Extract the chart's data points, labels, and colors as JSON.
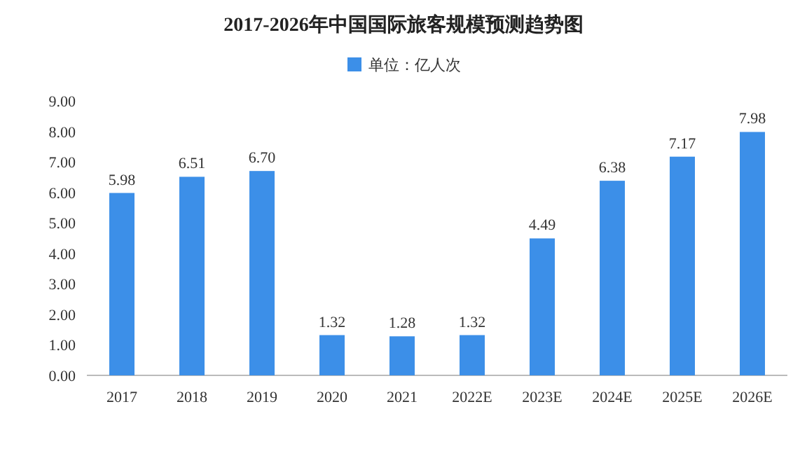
{
  "chart_data": {
    "type": "bar",
    "title": "2017-2026年中国国际旅客规模预测趋势图",
    "categories": [
      "2017",
      "2018",
      "2019",
      "2020",
      "2021",
      "2022E",
      "2023E",
      "2024E",
      "2025E",
      "2026E"
    ],
    "series": [
      {
        "name": "单位：亿人次",
        "color": "#3c8fe8",
        "values": [
          5.98,
          6.51,
          6.7,
          1.32,
          1.28,
          1.32,
          4.49,
          6.38,
          7.17,
          7.98
        ]
      }
    ],
    "value_labels": [
      "5.98",
      "6.51",
      "6.70",
      "1.32",
      "1.28",
      "1.32",
      "4.49",
      "6.38",
      "7.17",
      "7.98"
    ],
    "ylim": [
      0,
      9
    ],
    "yticks": [
      {
        "value": 0,
        "label": "0.00"
      },
      {
        "value": 1,
        "label": "1.00"
      },
      {
        "value": 2,
        "label": "2.00"
      },
      {
        "value": 3,
        "label": "3.00"
      },
      {
        "value": 4,
        "label": "4.00"
      },
      {
        "value": 5,
        "label": "5.00"
      },
      {
        "value": 6,
        "label": "6.00"
      },
      {
        "value": 7,
        "label": "7.00"
      },
      {
        "value": 8,
        "label": "8.00"
      },
      {
        "value": 9,
        "label": "9.00"
      }
    ],
    "legend": "top",
    "grid": false
  }
}
